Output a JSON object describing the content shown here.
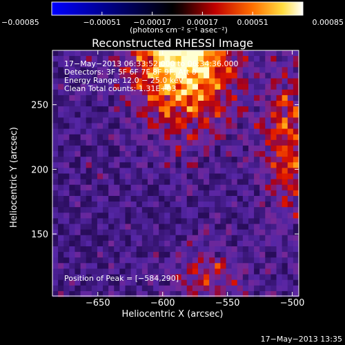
{
  "chart_data": {
    "type": "heatmap",
    "title": "Reconstructed RHESSI Image",
    "xlabel": "Heliocentric X (arcsec)",
    "ylabel": "Heliocentric Y (arcsec)",
    "xlim": [
      -685,
      -495
    ],
    "ylim": [
      102,
      292
    ],
    "x_ticks": [
      -650,
      -600,
      -550,
      -500
    ],
    "x_tick_labels": [
      "−650",
      "−600",
      "−550",
      "−500"
    ],
    "y_ticks": [
      150,
      200,
      250
    ],
    "y_tick_labels": [
      "150",
      "200",
      "250"
    ],
    "colorbar": {
      "orientation": "horizontal",
      "position": "top",
      "range": [
        -0.00085,
        0.00085
      ],
      "ticks": [
        -0.00085,
        -0.00051,
        -0.00017,
        0.00017,
        0.00051,
        0.00085
      ],
      "tick_labels": [
        "−0.00085",
        "−0.00051",
        "−0.00017",
        "0.00017",
        "0.00051",
        "0.00085"
      ],
      "units_label": "(photons cm⁻² s⁻¹ asec⁻²)"
    },
    "peak": [
      -584,
      290
    ],
    "annotations": [
      "17−May−2013 06:33:52.000 to 06:34:36.000",
      "Detectors: 3F 5F 6F 7F 8F 9F, Att 0",
      "Energy Range: 12.0 − 25.0 keV",
      "Clean     Total counts: 1.31E+03",
      "Position of Peak = [−584,290]"
    ]
  },
  "timestamp": "17−May−2013 13:35"
}
